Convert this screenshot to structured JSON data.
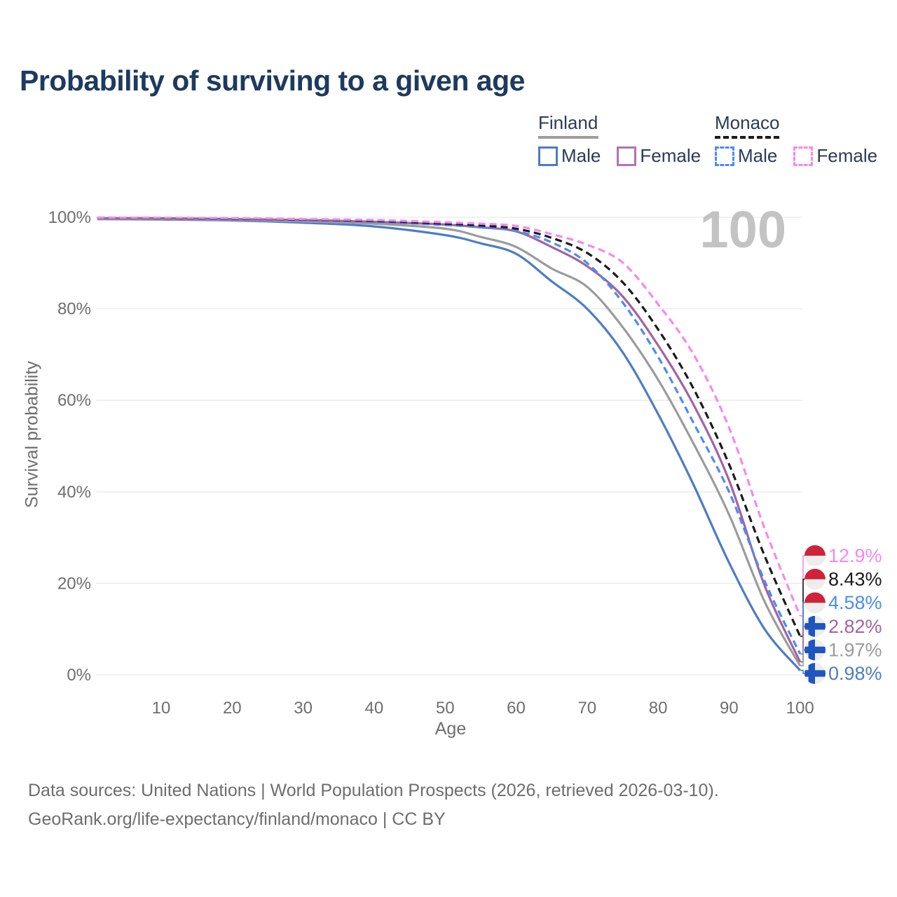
{
  "title": "Probability of surviving to a given age",
  "watermark": "100",
  "legend": {
    "finland": {
      "header": "Finland",
      "male": "Male",
      "female": "Female",
      "male_color": "#4d7cc6",
      "female_color": "#b273b0",
      "underline_color": "#9e9e9e"
    },
    "monaco": {
      "header": "Monaco",
      "male": "Male",
      "female": "Female",
      "male_color": "#4b8bf4",
      "female_color": "#f887ee",
      "underline_color": "#1a1a1a"
    }
  },
  "axes": {
    "y_label": "Survival probability",
    "x_label": "Age",
    "y_ticks": [
      {
        "label": "100%",
        "value": 100
      },
      {
        "label": "80%",
        "value": 80
      },
      {
        "label": "60%",
        "value": 60
      },
      {
        "label": "40%",
        "value": 40
      },
      {
        "label": "20%",
        "value": 20
      },
      {
        "label": "0%",
        "value": 0
      }
    ],
    "x_ticks": [
      10,
      20,
      30,
      40,
      50,
      60,
      70,
      80,
      90,
      100
    ]
  },
  "footer": {
    "line1": "Data sources: United Nations | World Population Prospects (2026, retrieved 2026-03-10).",
    "line2": "GeoRank.org/life-expectancy/finland/monaco | CC BY"
  },
  "chart_data": {
    "type": "line",
    "title": "Probability of surviving to a given age",
    "xlabel": "Age",
    "ylabel": "Survival probability",
    "xlim": [
      1,
      105
    ],
    "ylim": [
      0,
      100
    ],
    "grid": "horizontal",
    "legend_position": "top-right",
    "x": [
      1,
      10,
      20,
      30,
      40,
      50,
      55,
      60,
      65,
      70,
      75,
      80,
      85,
      90,
      95,
      100
    ],
    "series": [
      {
        "name": "Monaco Female",
        "country": "Monaco",
        "sex": "Female",
        "style": "dashed",
        "color": "#f887ee",
        "flag": "monaco",
        "end_label": "12.9%",
        "values": [
          99.9,
          99.9,
          99.8,
          99.6,
          99.4,
          98.9,
          98.6,
          98.1,
          96.3,
          94.0,
          90.1,
          81.0,
          70.0,
          54.0,
          32.0,
          12.9
        ]
      },
      {
        "name": "Monaco Both sexes",
        "country": "Monaco",
        "sex": "Both",
        "style": "dashed",
        "color": "#1a1a1a",
        "flag": "monaco",
        "end_label": "8.43%",
        "values": [
          99.9,
          99.8,
          99.7,
          99.5,
          99.2,
          98.6,
          98.2,
          97.5,
          95.5,
          92.2,
          85.8,
          75.5,
          62.5,
          46.0,
          26.0,
          8.43
        ]
      },
      {
        "name": "Monaco Male",
        "country": "Monaco",
        "sex": "Male",
        "style": "dashed",
        "color": "#4b8bf4",
        "flag": "monaco",
        "end_label": "4.58%",
        "values": [
          99.9,
          99.8,
          99.6,
          99.4,
          99.0,
          98.3,
          97.8,
          97.0,
          94.5,
          90.0,
          81.4,
          69.5,
          55.0,
          40.0,
          20.5,
          4.58
        ]
      },
      {
        "name": "Finland Female",
        "country": "Finland",
        "sex": "Female",
        "style": "solid",
        "color": "#a263a3",
        "flag": "finland",
        "end_label": "2.82%",
        "values": [
          99.8,
          99.8,
          99.6,
          99.4,
          99.0,
          98.4,
          97.8,
          96.9,
          93.5,
          89.3,
          82.7,
          72.0,
          59.0,
          42.5,
          19.5,
          2.82
        ]
      },
      {
        "name": "Finland Both sexes",
        "country": "Finland",
        "sex": "Both",
        "style": "solid",
        "color": "#9b9b9b",
        "flag": "finland",
        "end_label": "1.97%",
        "values": [
          99.7,
          99.6,
          99.4,
          99.1,
          98.6,
          97.5,
          95.7,
          93.5,
          88.8,
          84.8,
          76.0,
          64.5,
          50.5,
          35.0,
          16.0,
          1.97
        ]
      },
      {
        "name": "Finland Male",
        "country": "Finland",
        "sex": "Male",
        "style": "solid",
        "color": "#4d7cc6",
        "flag": "finland",
        "end_label": "0.98%",
        "values": [
          99.6,
          99.5,
          99.3,
          98.8,
          98.0,
          96.1,
          94.3,
          92.0,
          86.0,
          80.0,
          70.5,
          57.0,
          41.5,
          24.5,
          10.0,
          0.98
        ]
      }
    ],
    "flag_colors": {
      "monaco_red": "#ce2338",
      "finland_blue": "#1f55bd",
      "flag_bg": "#ededed"
    },
    "grid_color": "#e9e9e9",
    "tick_color": "#6e6e6e"
  }
}
